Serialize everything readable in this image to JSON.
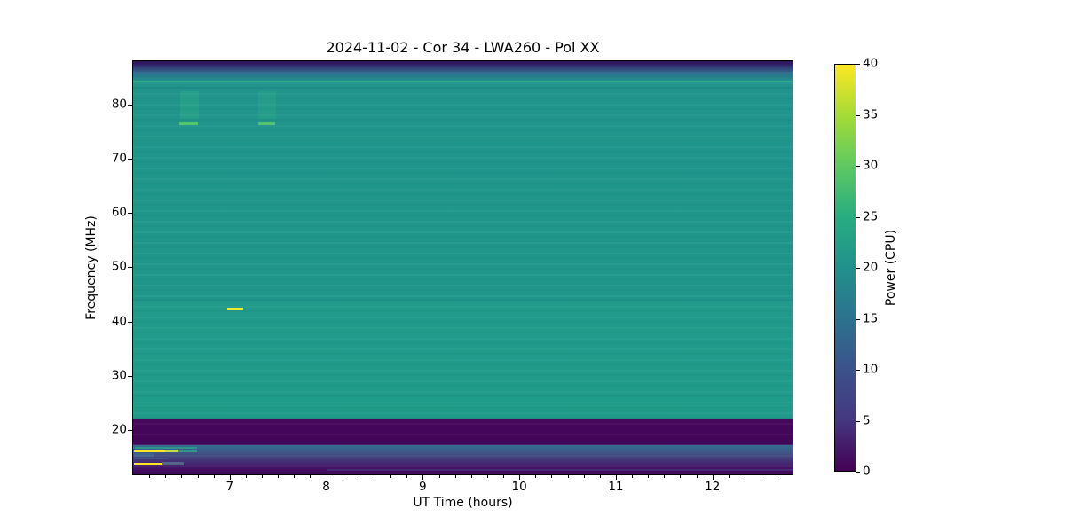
{
  "chart_data": {
    "type": "heatmap",
    "title": "2024-11-02 - Cor 34 - LWA260 - Pol XX",
    "xlabel": "UT Time (hours)",
    "ylabel": "Frequency (MHz)",
    "x_range": [
      6.0,
      12.83
    ],
    "y_range": [
      11.8,
      88.0
    ],
    "x_ticks": [
      7,
      8,
      9,
      10,
      11,
      12
    ],
    "x_minor_step": 0.16667,
    "y_ticks": [
      20,
      30,
      40,
      50,
      60,
      70,
      80
    ],
    "grid": false,
    "colorbar": {
      "label": "Power (CPU)",
      "min": 0,
      "max": 40,
      "ticks": [
        0,
        5,
        10,
        15,
        20,
        25,
        30,
        35,
        40
      ],
      "colormap": "viridis",
      "gradient_stops": [
        [
          0,
          "#440154"
        ],
        [
          5,
          "#453781"
        ],
        [
          10,
          "#3b528b"
        ],
        [
          15,
          "#2c728e"
        ],
        [
          20,
          "#21918c"
        ],
        [
          25,
          "#27ad81"
        ],
        [
          30,
          "#5ec962"
        ],
        [
          35,
          "#a5db36"
        ],
        [
          40,
          "#fde725"
        ]
      ]
    },
    "background_bands": [
      [
        88.0,
        "#25094e"
      ],
      [
        87.4,
        "#31206a"
      ],
      [
        86.6,
        "#35477c"
      ],
      [
        85.8,
        "#2d6d8e"
      ],
      [
        85.0,
        "#26868d"
      ],
      [
        83.8,
        "#21948b"
      ],
      [
        60.0,
        "#20968b"
      ],
      [
        44.15,
        "#20968b"
      ],
      [
        44.0,
        "#1e8e87"
      ],
      [
        43.7,
        "#219a8b"
      ],
      [
        24.0,
        "#1f9b8a"
      ],
      [
        22.15,
        "#219a8b"
      ],
      [
        22.1,
        "#45085a"
      ],
      [
        17.3,
        "#430559"
      ],
      [
        17.15,
        "#316b8e"
      ],
      [
        16.4,
        "#3a628e"
      ],
      [
        15.3,
        "#434a80"
      ],
      [
        14.0,
        "#452c74"
      ],
      [
        12.8,
        "#440f62"
      ],
      [
        11.8,
        "#42075e"
      ]
    ],
    "horizontal_stripes": [
      {
        "f_top": 85.45,
        "f_bottom": 85.15,
        "color": "#26798e",
        "opacity": 0.55
      },
      {
        "f_top": 84.45,
        "f_bottom": 84.15,
        "color": "#2fb086",
        "opacity": 0.95
      },
      {
        "f_top": 83.3,
        "f_bottom": 83.0,
        "color": "#1e8a89",
        "opacity": 0.5
      },
      {
        "f_top": 82.1,
        "f_bottom": 81.85,
        "color": "#218f8c",
        "opacity": 0.5
      },
      {
        "f_top": 73.5,
        "f_bottom": 73.2,
        "color": "#26a08c",
        "opacity": 0.35
      },
      {
        "f_top": 64.3,
        "f_bottom": 64.05,
        "color": "#1e9089",
        "opacity": 0.4
      },
      {
        "f_top": 54.1,
        "f_bottom": 53.85,
        "color": "#1e9089",
        "opacity": 0.4
      },
      {
        "f_top": 48.0,
        "f_bottom": 47.75,
        "color": "#22a08c",
        "opacity": 0.3
      },
      {
        "f_top": 26.5,
        "f_bottom": 26.2,
        "color": "#1d8d88",
        "opacity": 0.45
      },
      {
        "f_top": 24.6,
        "f_bottom": 24.3,
        "color": "#26a68c",
        "opacity": 0.4
      }
    ],
    "features": [
      {
        "name": "enhancement-column-1",
        "t_start": 6.49,
        "t_end": 6.68,
        "f_top": 82.4,
        "f_bottom": 77.3,
        "color": "#2fae86",
        "opacity": 0.4
      },
      {
        "name": "enhancement-column-1-line",
        "t_start": 6.48,
        "t_end": 6.67,
        "f_top": 76.7,
        "f_bottom": 76.25,
        "color": "#52c46c",
        "opacity": 1
      },
      {
        "name": "enhancement-column-2",
        "t_start": 7.3,
        "t_end": 7.48,
        "f_top": 82.4,
        "f_bottom": 77.3,
        "color": "#2fae86",
        "opacity": 0.35
      },
      {
        "name": "enhancement-column-2-line",
        "t_start": 7.3,
        "t_end": 7.47,
        "f_top": 76.7,
        "f_bottom": 76.25,
        "color": "#52c46c",
        "opacity": 1
      },
      {
        "name": "burst-42mhz",
        "t_start": 6.97,
        "t_end": 7.14,
        "f_top": 42.5,
        "f_bottom": 42.1,
        "color": "#f2e626",
        "opacity": 1
      },
      {
        "name": "rfi-teal-16.7mhz",
        "t_start": 6.02,
        "t_end": 6.66,
        "f_top": 16.95,
        "f_bottom": 16.55,
        "color": "#2c9a8a",
        "opacity": 0.9
      },
      {
        "name": "rfi-yellow-16.1mhz",
        "t_start": 6.01,
        "t_end": 6.33,
        "f_top": 16.35,
        "f_bottom": 15.95,
        "color": "#fde725",
        "opacity": 1
      },
      {
        "name": "rfi-yellow-16.1mhz-fade",
        "t_start": 6.33,
        "t_end": 6.47,
        "f_top": 16.35,
        "f_bottom": 15.95,
        "color": "#c6dc40",
        "opacity": 1
      },
      {
        "name": "rfi-teal-16.1mhz-tail",
        "t_start": 6.47,
        "t_end": 6.66,
        "f_top": 16.35,
        "f_bottom": 15.95,
        "color": "#2f9d88",
        "opacity": 0.9
      },
      {
        "name": "rfi-blue-15.4mhz",
        "t_start": 6.01,
        "t_end": 6.21,
        "f_top": 15.75,
        "f_bottom": 15.05,
        "color": "#40648f",
        "opacity": 0.9
      },
      {
        "name": "rfi-blue-14.8mhz",
        "t_start": 6.01,
        "t_end": 6.36,
        "f_top": 14.95,
        "f_bottom": 14.6,
        "color": "#3e5d8c",
        "opacity": 0.7
      },
      {
        "name": "rfi-yellow-13.8mhz",
        "t_start": 6.01,
        "t_end": 6.3,
        "f_top": 13.95,
        "f_bottom": 13.55,
        "color": "#fde725",
        "opacity": 1
      },
      {
        "name": "rfi-grey-13.8mhz",
        "t_start": 6.3,
        "t_end": 6.52,
        "f_top": 14.1,
        "f_bottom": 13.4,
        "color": "#55678b",
        "opacity": 0.95
      },
      {
        "name": "faint-stripe-12.6mhz",
        "t_start": 8.0,
        "t_end": 12.83,
        "f_top": 12.75,
        "f_bottom": 12.45,
        "color": "#49327a",
        "opacity": 0.8
      }
    ]
  }
}
